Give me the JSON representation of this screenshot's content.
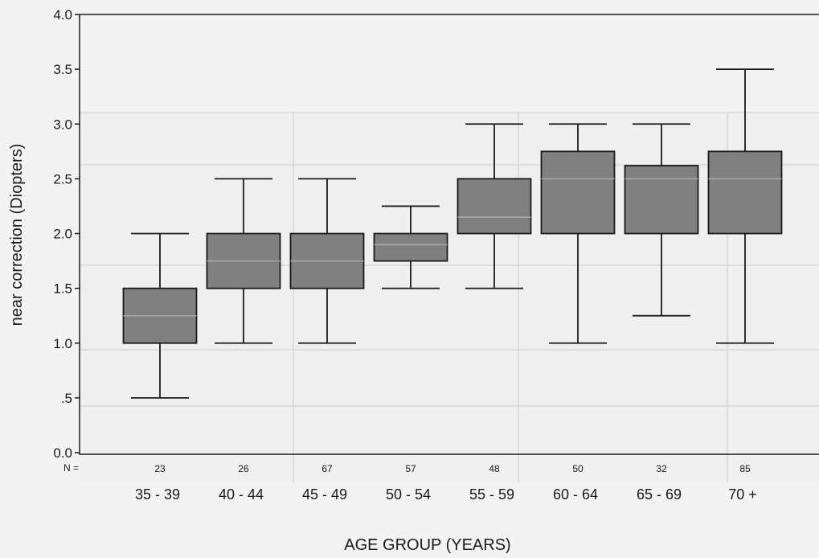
{
  "chart_data": {
    "type": "boxplot",
    "ylabel": "near correction (Diopters)",
    "xlabel": "AGE  GROUP (YEARS)",
    "ylim": [
      0,
      4.0
    ],
    "y_ticks": [
      "0.0",
      ".5",
      "1.0",
      "1.5",
      "2.0",
      "2.5",
      "3.0",
      "3.5",
      "4.0"
    ],
    "y_tick_values": [
      0,
      0.5,
      1.0,
      1.5,
      2.0,
      2.5,
      3.0,
      3.5,
      4.0
    ],
    "n_label": "N =",
    "grid": false,
    "box_color": "#808080",
    "categories": [
      "35 - 39",
      "40 - 44",
      "45 - 49",
      "50 - 54",
      "55 - 59",
      "60 - 64",
      "65 - 69",
      "70 +"
    ],
    "n": [
      "23",
      "26",
      "67",
      "57",
      "48",
      "50",
      "32",
      "85"
    ],
    "boxes": [
      {
        "min": 0.5,
        "q1": 1.0,
        "median": 1.25,
        "q3": 1.5,
        "max": 2.0
      },
      {
        "min": 1.0,
        "q1": 1.5,
        "median": 1.75,
        "q3": 2.0,
        "max": 2.5
      },
      {
        "min": 1.0,
        "q1": 1.5,
        "median": 1.75,
        "q3": 2.0,
        "max": 2.5
      },
      {
        "min": 1.5,
        "q1": 1.75,
        "median": 1.9,
        "q3": 2.0,
        "max": 2.25
      },
      {
        "min": 1.5,
        "q1": 2.0,
        "median": 2.15,
        "q3": 2.5,
        "max": 3.0
      },
      {
        "min": 1.0,
        "q1": 2.0,
        "median": 2.5,
        "q3": 2.75,
        "max": 3.0
      },
      {
        "min": 1.25,
        "q1": 2.0,
        "median": 2.5,
        "q3": 2.62,
        "max": 3.0
      },
      {
        "min": 1.0,
        "q1": 2.0,
        "median": 2.5,
        "q3": 2.75,
        "max": 3.5
      }
    ]
  }
}
